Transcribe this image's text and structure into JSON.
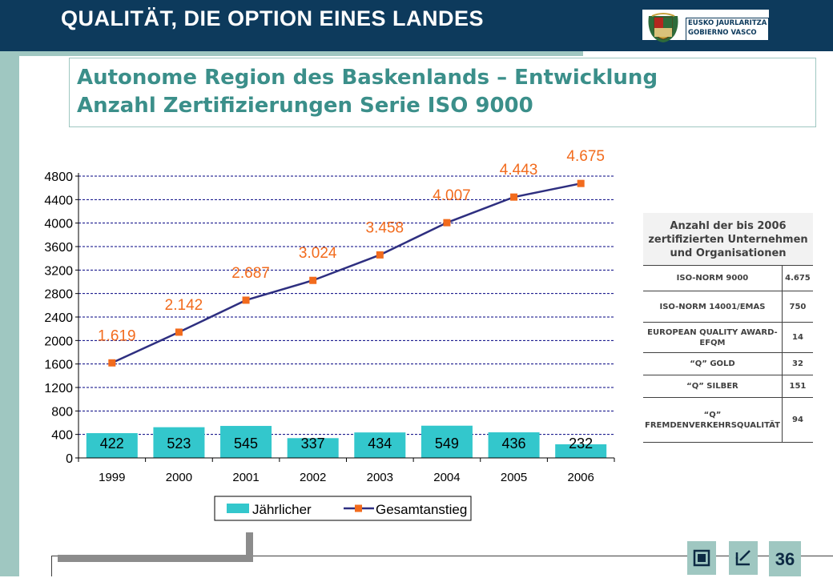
{
  "header": {
    "title": "QUALITÄT, DIE OPTION EINES LANDES"
  },
  "logo": {
    "line1": "EUSKO JAURLARITZA",
    "line2": "GOBIERNO VASCO"
  },
  "subtitle": {
    "line1": "Autonome Region des Baskenlands – Entwicklung",
    "line2": "Anzahl Zertifizierungen Serie ISO 9000"
  },
  "chart_data": {
    "type": "bar+line",
    "categories": [
      "1999",
      "2000",
      "2001",
      "2002",
      "2003",
      "2004",
      "2005",
      "2006"
    ],
    "series": [
      {
        "name": "Jährlicher",
        "type": "bar",
        "values": [
          422,
          523,
          545,
          337,
          434,
          549,
          436,
          232
        ],
        "labels": [
          "422",
          "523",
          "545",
          "337",
          "434",
          "549",
          "436",
          "232"
        ]
      },
      {
        "name": "Gesamtanstieg",
        "type": "line",
        "values": [
          1619,
          2142,
          2687,
          3024,
          3458,
          4007,
          4443,
          4675
        ],
        "labels": [
          "1.619",
          "2.142",
          "2.687",
          "3.024",
          "3.458",
          "4.007",
          "4.443",
          "4.675"
        ]
      }
    ],
    "yticks": [
      "0",
      "400",
      "800",
      "1200",
      "1600",
      "2000",
      "2400",
      "2800",
      "3200",
      "3600",
      "4000",
      "4400",
      "4800"
    ],
    "ylim": [
      0,
      4800
    ],
    "grid": "horizontal dashed",
    "legend_position": "bottom",
    "colors": {
      "bar": "#33c7cc",
      "line": "#2e2f80",
      "marker": "#f26b1d",
      "label": "#f26b1d",
      "grid": "#000080"
    }
  },
  "table": {
    "header": "Anzahl der bis 2006 zertifizierten Unternehmen und Organisationen",
    "rows": [
      {
        "label": "ISO-NORM 9000",
        "value": "4.675"
      },
      {
        "label": "ISO-NORM 14001/EMAS",
        "value": "750"
      },
      {
        "label": "EUROPEAN QUALITY AWARD-EFQM",
        "value": "14"
      },
      {
        "label": "“Q” GOLD",
        "value": "32"
      },
      {
        "label": "“Q” SILBER",
        "value": "151"
      },
      {
        "label": "“Q” FREMDENVERKEHRSQUALITÄT",
        "value": "94"
      }
    ]
  },
  "footer": {
    "page_number": "36",
    "icons": [
      "frame-icon",
      "back-arrow-icon"
    ]
  }
}
